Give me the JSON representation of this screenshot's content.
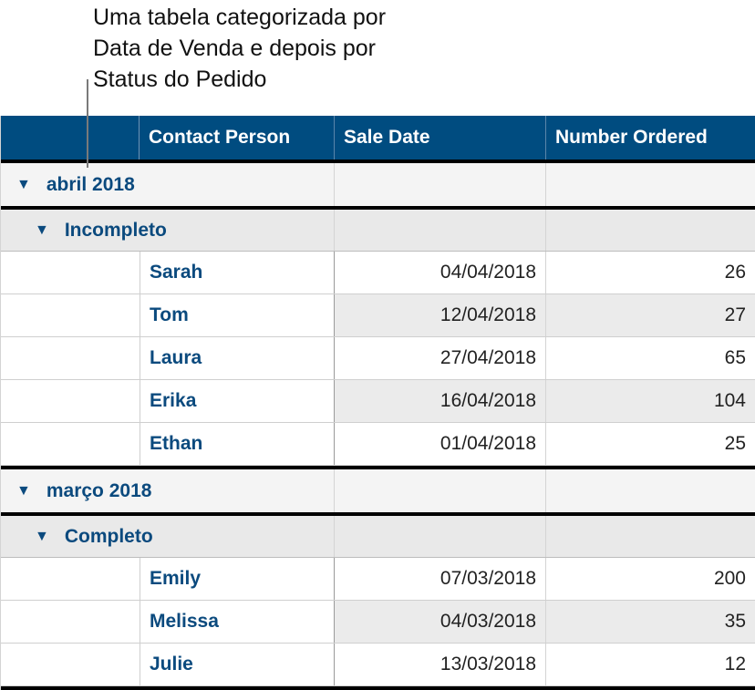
{
  "callout": {
    "lines": [
      "Uma tabela categorizada por",
      "Data de Venda e depois por",
      "Status do Pedido"
    ]
  },
  "colors": {
    "header_bg": "#004c80",
    "header_text": "#ffffff",
    "group_text": "#0b4a7e",
    "group_bg": "#f4f4f4",
    "subgroup_bg": "#e9e9e9"
  },
  "table": {
    "headers": [
      "",
      "Contact Person",
      "Sale Date",
      "Number Ordered"
    ],
    "groups": [
      {
        "label": "abril 2018",
        "icon": "disclosure-triangle-down-icon",
        "subgroups": [
          {
            "label": "Incompleto",
            "icon": "disclosure-triangle-down-icon",
            "rows": [
              {
                "contact": "Sarah",
                "date": "04/04/2018",
                "number": "26"
              },
              {
                "contact": "Tom",
                "date": "12/04/2018",
                "number": "27"
              },
              {
                "contact": "Laura",
                "date": "27/04/2018",
                "number": "65"
              },
              {
                "contact": "Erika",
                "date": "16/04/2018",
                "number": "104"
              },
              {
                "contact": "Ethan",
                "date": "01/04/2018",
                "number": "25"
              }
            ]
          }
        ]
      },
      {
        "label": "março 2018",
        "icon": "disclosure-triangle-down-icon",
        "subgroups": [
          {
            "label": "Completo",
            "icon": "disclosure-triangle-down-icon",
            "rows": [
              {
                "contact": "Emily",
                "date": "07/03/2018",
                "number": "200"
              },
              {
                "contact": "Melissa",
                "date": "04/03/2018",
                "number": "35"
              },
              {
                "contact": "Julie",
                "date": "13/03/2018",
                "number": "12"
              }
            ]
          }
        ]
      }
    ]
  }
}
